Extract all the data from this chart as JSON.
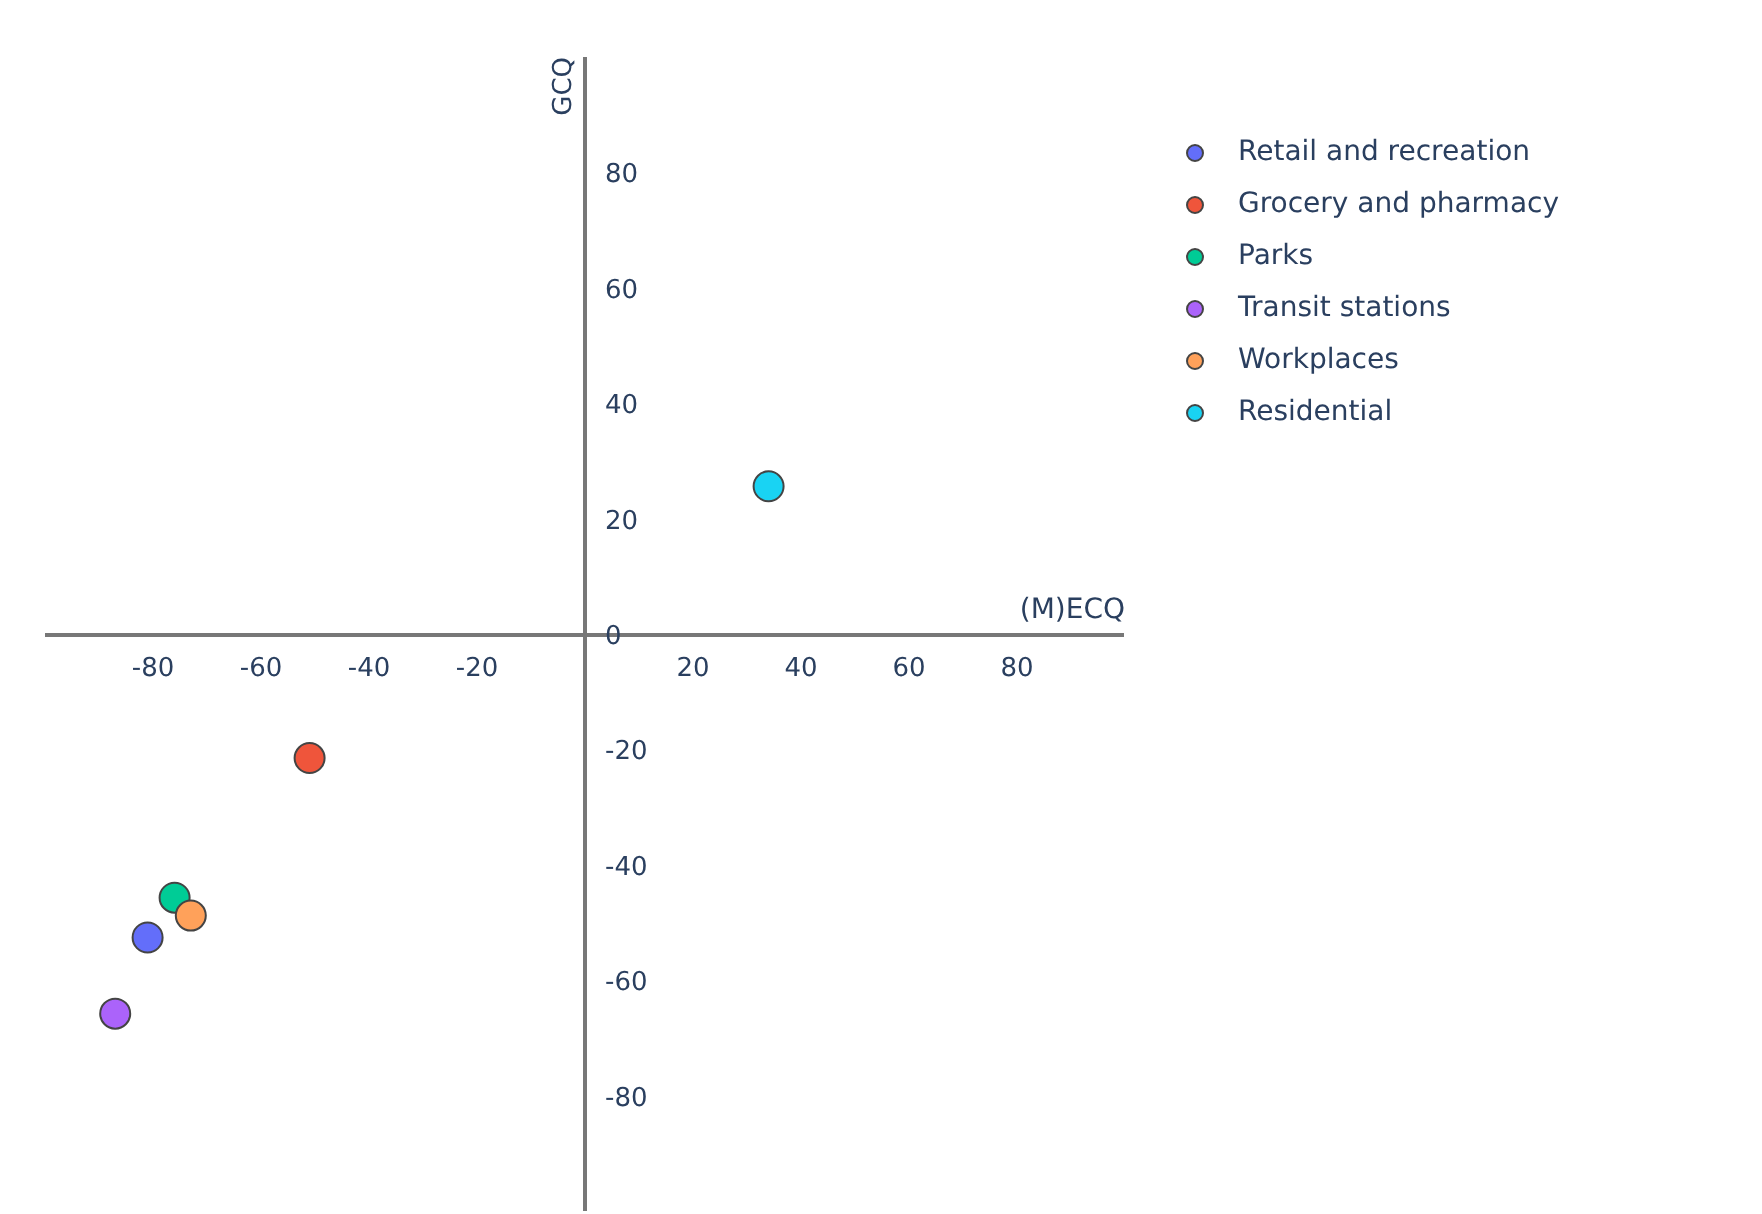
{
  "chart_data": {
    "type": "scatter",
    "xlabel": "(M)ECQ",
    "ylabel": "GCQ",
    "xlim": [
      -100,
      100
    ],
    "ylim": [
      -100,
      100
    ],
    "xticks": [
      -80,
      -60,
      -40,
      -20,
      20,
      40,
      60,
      80
    ],
    "yticks": [
      -80,
      -60,
      -40,
      -20,
      0,
      20,
      40,
      60,
      80
    ],
    "grid": false,
    "legend": "top right",
    "marker": "circle",
    "series": [
      {
        "name": "Retail and recreation",
        "color": "#636efa",
        "x": [
          -81
        ],
        "values": [
          -52.6
        ]
      },
      {
        "name": "Grocery and pharmacy",
        "color": "#ef553b",
        "x": [
          -51
        ],
        "values": [
          -21.5
        ]
      },
      {
        "name": "Parks",
        "color": "#00cc96",
        "x": [
          -76
        ],
        "values": [
          -45.7
        ]
      },
      {
        "name": "Transit stations",
        "color": "#ab63fa",
        "x": [
          -87
        ],
        "values": [
          -65.8
        ]
      },
      {
        "name": "Workplaces",
        "color": "#ffa15a",
        "x": [
          -73
        ],
        "values": [
          -48.8
        ]
      },
      {
        "name": "Residential",
        "color": "#19d3f3",
        "x": [
          34
        ],
        "values": [
          25.6
        ]
      }
    ]
  }
}
